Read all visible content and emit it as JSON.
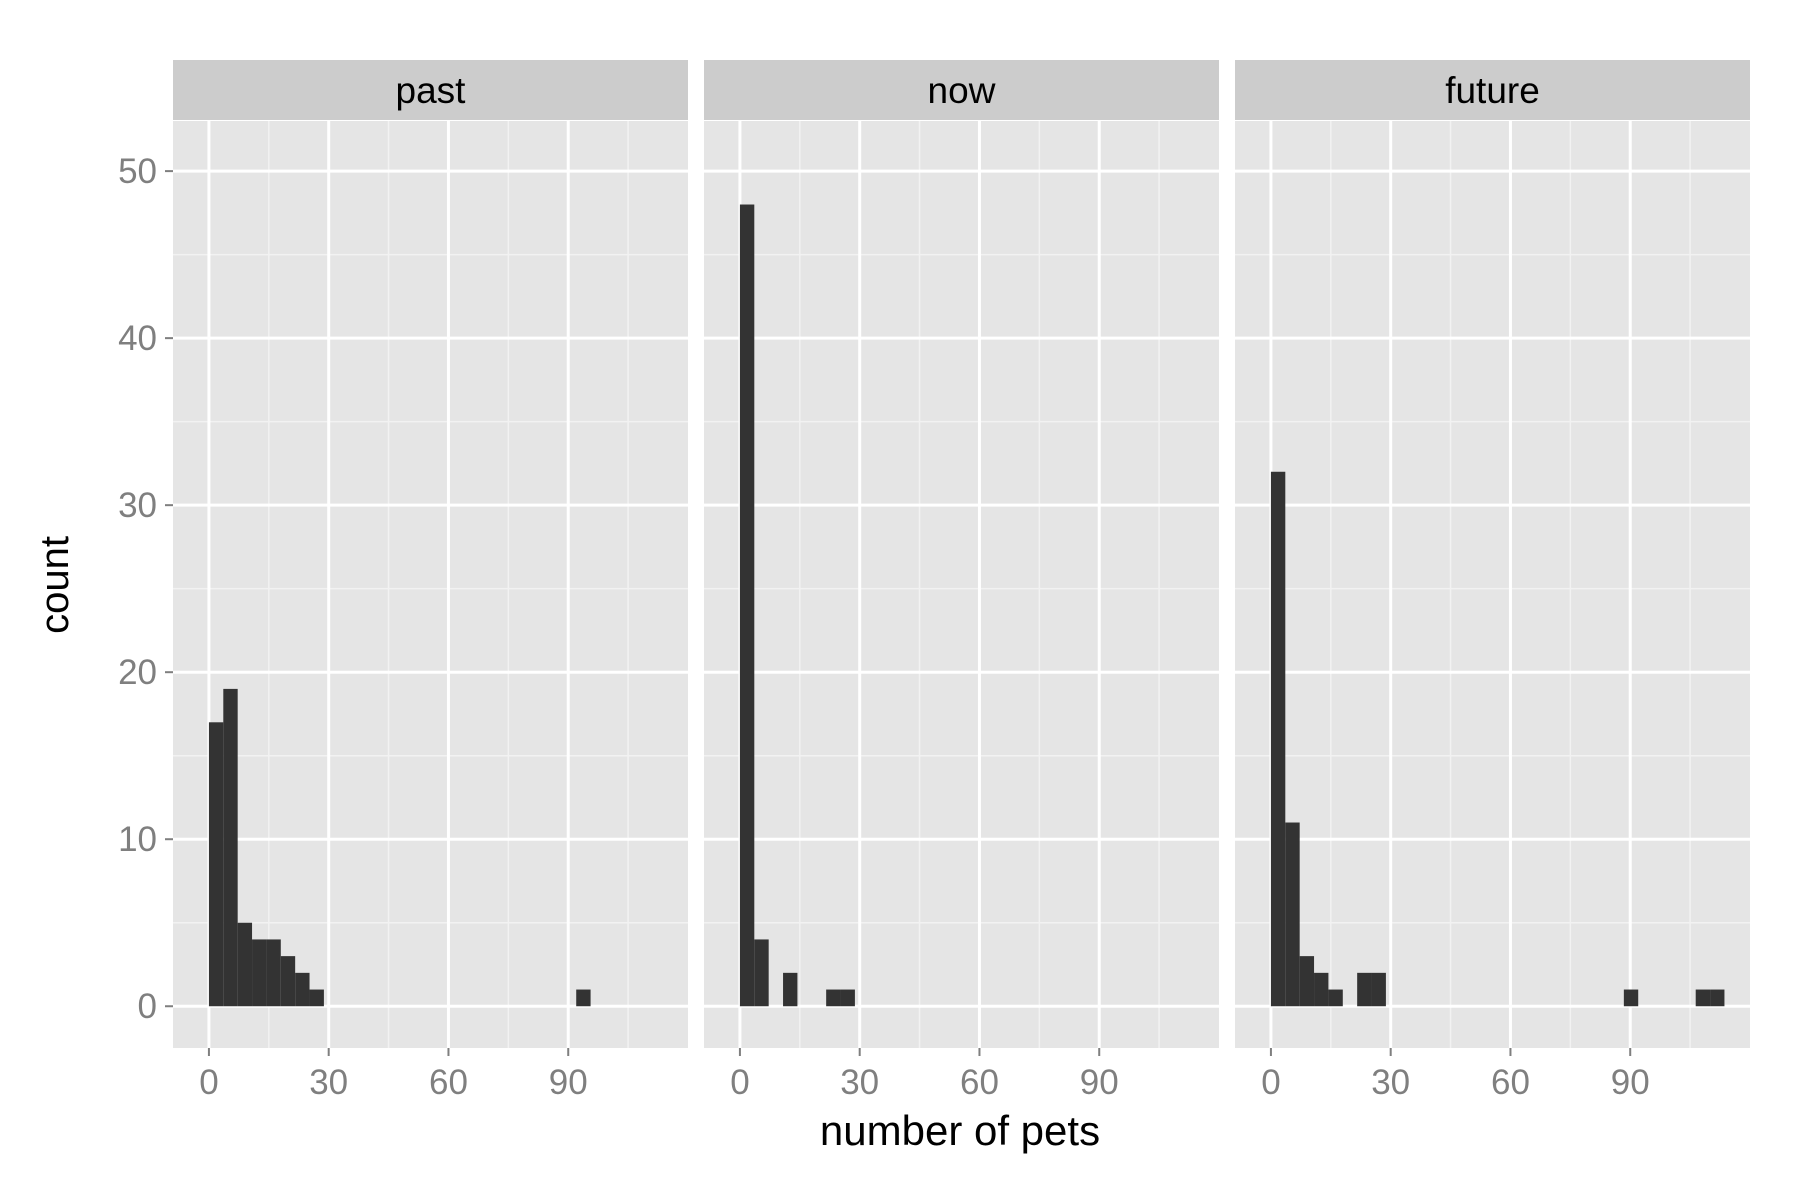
{
  "chart_data": {
    "type": "bar",
    "kind": "histogram-facets",
    "xlabel": "number of pets",
    "ylabel": "count",
    "xlim": [
      -9,
      120
    ],
    "ylim": [
      -2.5,
      53
    ],
    "bin_width": 3.6,
    "x_ticks": [
      0,
      30,
      60,
      90
    ],
    "x_tick_labels": [
      "0",
      "30",
      "60",
      "90"
    ],
    "y_ticks": [
      0,
      10,
      20,
      30,
      40,
      50
    ],
    "y_tick_labels": [
      "0",
      "10",
      "20",
      "30",
      "40",
      "50"
    ],
    "grid": true,
    "colors": {
      "panel_bg": "#e5e5e5",
      "strip_bg": "#cccccc",
      "grid_major": "#ffffff",
      "grid_minor": "#f2f2f2",
      "bar_fill": "#333333",
      "tick_text": "#7f7f7f",
      "title_text": "#000000"
    },
    "facets": [
      {
        "name": "past",
        "bins": [
          {
            "x0": 0,
            "x1": 3.6,
            "count": 17
          },
          {
            "x0": 3.6,
            "x1": 7.2,
            "count": 19
          },
          {
            "x0": 7.2,
            "x1": 10.8,
            "count": 5
          },
          {
            "x0": 10.8,
            "x1": 14.4,
            "count": 4
          },
          {
            "x0": 14.4,
            "x1": 18.0,
            "count": 4
          },
          {
            "x0": 18.0,
            "x1": 21.6,
            "count": 3
          },
          {
            "x0": 21.6,
            "x1": 25.2,
            "count": 2
          },
          {
            "x0": 25.2,
            "x1": 28.8,
            "count": 1
          },
          {
            "x0": 92.0,
            "x1": 95.6,
            "count": 1
          }
        ]
      },
      {
        "name": "now",
        "bins": [
          {
            "x0": 0,
            "x1": 3.6,
            "count": 48
          },
          {
            "x0": 3.6,
            "x1": 7.2,
            "count": 4
          },
          {
            "x0": 10.8,
            "x1": 14.4,
            "count": 2
          },
          {
            "x0": 21.6,
            "x1": 25.2,
            "count": 1
          },
          {
            "x0": 25.2,
            "x1": 28.8,
            "count": 1
          }
        ]
      },
      {
        "name": "future",
        "bins": [
          {
            "x0": 0,
            "x1": 3.6,
            "count": 32
          },
          {
            "x0": 3.6,
            "x1": 7.2,
            "count": 11
          },
          {
            "x0": 7.2,
            "x1": 10.8,
            "count": 3
          },
          {
            "x0": 10.8,
            "x1": 14.4,
            "count": 2
          },
          {
            "x0": 14.4,
            "x1": 18.0,
            "count": 1
          },
          {
            "x0": 21.6,
            "x1": 25.2,
            "count": 2
          },
          {
            "x0": 25.2,
            "x1": 28.8,
            "count": 2
          },
          {
            "x0": 88.4,
            "x1": 92.0,
            "count": 1
          },
          {
            "x0": 106.4,
            "x1": 110.0,
            "count": 1
          },
          {
            "x0": 110.0,
            "x1": 113.6,
            "count": 1
          }
        ]
      }
    ]
  }
}
